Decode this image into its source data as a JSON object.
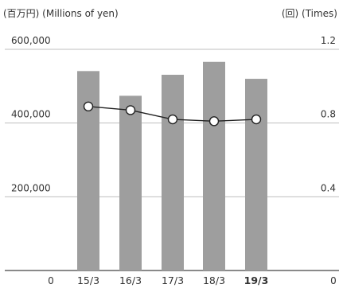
{
  "chart_data": {
    "type": "bar",
    "left_unit": "(百万円) (Millions of yen)",
    "right_unit": "(回) (Times)",
    "categories": [
      "15/3",
      "16/3",
      "17/3",
      "18/3",
      "19/3"
    ],
    "highlight_category": "19/3",
    "series": [
      {
        "kind": "bar",
        "axis": "left",
        "color": "#9e9e9e",
        "values": [
          541000,
          474000,
          531000,
          566000,
          520000
        ]
      },
      {
        "kind": "line",
        "axis": "right",
        "color": "#222222",
        "marker_fill": "#ffffff",
        "values": [
          0.89,
          0.87,
          0.82,
          0.81,
          0.82
        ]
      }
    ],
    "left_axis": {
      "ylim": [
        0,
        600000
      ],
      "ticks": [
        0,
        200000,
        400000,
        600000
      ],
      "tick_labels": [
        "0",
        "200,000",
        "400,000",
        "600,000"
      ]
    },
    "right_axis": {
      "ylim": [
        0,
        1.2
      ],
      "ticks": [
        0,
        0.4,
        0.8,
        1.2
      ],
      "tick_labels": [
        "0",
        "0.4",
        "0.8",
        "1.2"
      ]
    },
    "grid": true,
    "gridline_color": "#bfbfbf"
  }
}
